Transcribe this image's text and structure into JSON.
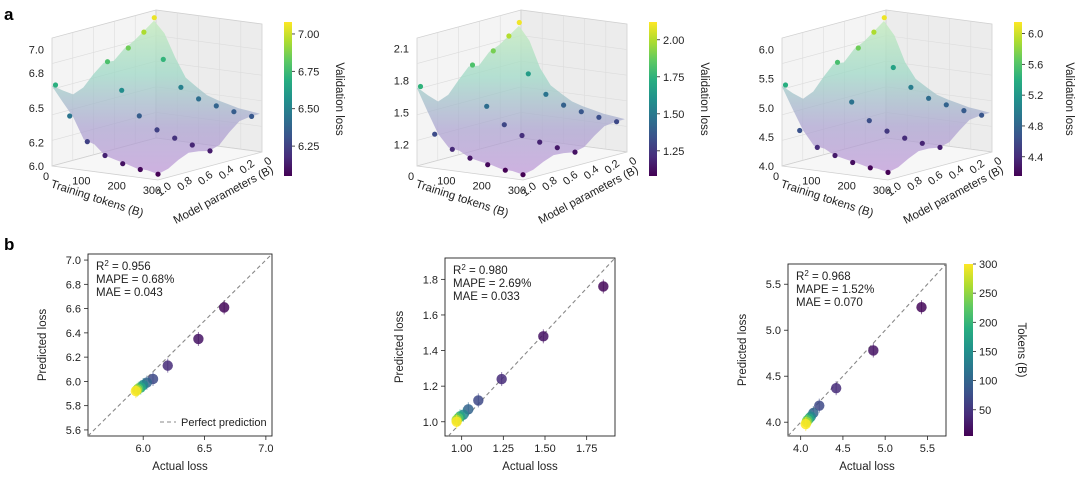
{
  "panel_labels": [
    "a",
    "b"
  ],
  "colormap": [
    "#440154",
    "#472d7b",
    "#3b528b",
    "#2c728e",
    "#21918c",
    "#28ae80",
    "#5ec962",
    "#addc30",
    "#fde725"
  ],
  "chart_data": [
    {
      "type": "surface3d",
      "panel": "a",
      "xlabel": "Training tokens (B)",
      "ylabel": "Model parameters (B)",
      "zlabel": "",
      "colorbar_label": "Validation loss",
      "x_ticks": [
        "0",
        "100",
        "200",
        "300"
      ],
      "y_ticks": [
        "1.0",
        "0.8",
        "0.6",
        "0.4",
        "0.2",
        "0"
      ],
      "z_ticks": [
        "6.0",
        "6.2",
        "6.5",
        "6.8",
        "7.0"
      ],
      "zlim": [
        6.0,
        7.1
      ],
      "colorbar_ticks": [
        "6.25",
        "6.50",
        "6.75",
        "7.00"
      ],
      "colorbar_range": [
        6.05,
        7.08
      ],
      "points": [
        {
          "tokens": 10,
          "params": 0.05,
          "loss": 7.05
        },
        {
          "tokens": 10,
          "params": 0.15,
          "loss": 6.95
        },
        {
          "tokens": 10,
          "params": 0.3,
          "loss": 6.85
        },
        {
          "tokens": 10,
          "params": 0.5,
          "loss": 6.78
        },
        {
          "tokens": 10,
          "params": 1.0,
          "loss": 6.7
        },
        {
          "tokens": 50,
          "params": 0.1,
          "loss": 6.72
        },
        {
          "tokens": 50,
          "params": 0.5,
          "loss": 6.55
        },
        {
          "tokens": 50,
          "params": 1.0,
          "loss": 6.45
        },
        {
          "tokens": 100,
          "params": 0.1,
          "loss": 6.5
        },
        {
          "tokens": 100,
          "params": 0.5,
          "loss": 6.35
        },
        {
          "tokens": 100,
          "params": 1.0,
          "loss": 6.25
        },
        {
          "tokens": 150,
          "params": 0.1,
          "loss": 6.42
        },
        {
          "tokens": 150,
          "params": 0.5,
          "loss": 6.25
        },
        {
          "tokens": 150,
          "params": 1.0,
          "loss": 6.15
        },
        {
          "tokens": 200,
          "params": 0.1,
          "loss": 6.38
        },
        {
          "tokens": 200,
          "params": 0.5,
          "loss": 6.2
        },
        {
          "tokens": 200,
          "params": 1.0,
          "loss": 6.1
        },
        {
          "tokens": 250,
          "params": 0.1,
          "loss": 6.35
        },
        {
          "tokens": 250,
          "params": 0.5,
          "loss": 6.16
        },
        {
          "tokens": 250,
          "params": 1.0,
          "loss": 6.07
        },
        {
          "tokens": 300,
          "params": 0.1,
          "loss": 6.33
        },
        {
          "tokens": 300,
          "params": 0.5,
          "loss": 6.13
        },
        {
          "tokens": 300,
          "params": 1.0,
          "loss": 6.05
        }
      ]
    },
    {
      "type": "surface3d",
      "panel": "a",
      "xlabel": "Training tokens (B)",
      "ylabel": "Model parameters (B)",
      "zlabel": "",
      "colorbar_label": "Validation loss",
      "x_ticks": [
        "0",
        "100",
        "200",
        "300"
      ],
      "y_ticks": [
        "1.0",
        "0.8",
        "0.6",
        "0.4",
        "0.2",
        "0"
      ],
      "z_ticks": [
        "1.2",
        "1.5",
        "1.8",
        "2.1"
      ],
      "zlim": [
        1.0,
        2.2
      ],
      "colorbar_ticks": [
        "1.25",
        "1.50",
        "1.75",
        "2.00"
      ],
      "colorbar_range": [
        1.08,
        2.12
      ],
      "points": [
        {
          "tokens": 10,
          "params": 0.05,
          "loss": 2.1
        },
        {
          "tokens": 10,
          "params": 0.15,
          "loss": 2.0
        },
        {
          "tokens": 10,
          "params": 0.3,
          "loss": 1.9
        },
        {
          "tokens": 10,
          "params": 0.5,
          "loss": 1.82
        },
        {
          "tokens": 10,
          "params": 1.0,
          "loss": 1.75
        },
        {
          "tokens": 50,
          "params": 0.1,
          "loss": 1.65
        },
        {
          "tokens": 50,
          "params": 0.5,
          "loss": 1.45
        },
        {
          "tokens": 50,
          "params": 1.0,
          "loss": 1.32
        },
        {
          "tokens": 100,
          "params": 0.1,
          "loss": 1.48
        },
        {
          "tokens": 100,
          "params": 0.5,
          "loss": 1.3
        },
        {
          "tokens": 100,
          "params": 1.0,
          "loss": 1.2
        },
        {
          "tokens": 150,
          "params": 0.1,
          "loss": 1.4
        },
        {
          "tokens": 150,
          "params": 0.5,
          "loss": 1.22
        },
        {
          "tokens": 150,
          "params": 1.0,
          "loss": 1.14
        },
        {
          "tokens": 200,
          "params": 0.1,
          "loss": 1.36
        },
        {
          "tokens": 200,
          "params": 0.5,
          "loss": 1.18
        },
        {
          "tokens": 200,
          "params": 1.0,
          "loss": 1.1
        },
        {
          "tokens": 250,
          "params": 0.1,
          "loss": 1.33
        },
        {
          "tokens": 250,
          "params": 0.5,
          "loss": 1.15
        },
        {
          "tokens": 250,
          "params": 1.0,
          "loss": 1.07
        },
        {
          "tokens": 300,
          "params": 0.1,
          "loss": 1.31
        },
        {
          "tokens": 300,
          "params": 0.5,
          "loss": 1.13
        },
        {
          "tokens": 300,
          "params": 1.0,
          "loss": 1.05
        }
      ]
    },
    {
      "type": "surface3d",
      "panel": "a",
      "xlabel": "Training tokens (B)",
      "ylabel": "Model parameters (B)",
      "zlabel": "",
      "colorbar_label": "Validation loss",
      "x_ticks": [
        "0",
        "100",
        "200",
        "300"
      ],
      "y_ticks": [
        "1.0",
        "0.8",
        "0.6",
        "0.4",
        "0.2",
        "0"
      ],
      "z_ticks": [
        "4.0",
        "4.5",
        "5.0",
        "5.5",
        "6.0"
      ],
      "zlim": [
        4.0,
        6.2
      ],
      "colorbar_ticks": [
        "4.4",
        "4.8",
        "5.2",
        "5.6",
        "6.0"
      ],
      "colorbar_range": [
        4.15,
        6.15
      ],
      "points": [
        {
          "tokens": 10,
          "params": 0.05,
          "loss": 6.1
        },
        {
          "tokens": 10,
          "params": 0.15,
          "loss": 5.9
        },
        {
          "tokens": 10,
          "params": 0.3,
          "loss": 5.7
        },
        {
          "tokens": 10,
          "params": 0.5,
          "loss": 5.55
        },
        {
          "tokens": 10,
          "params": 1.0,
          "loss": 5.4
        },
        {
          "tokens": 50,
          "params": 0.1,
          "loss": 5.3
        },
        {
          "tokens": 50,
          "params": 0.5,
          "loss": 4.9
        },
        {
          "tokens": 50,
          "params": 1.0,
          "loss": 4.65
        },
        {
          "tokens": 100,
          "params": 0.1,
          "loss": 5.0
        },
        {
          "tokens": 100,
          "params": 0.5,
          "loss": 4.62
        },
        {
          "tokens": 100,
          "params": 1.0,
          "loss": 4.4
        },
        {
          "tokens": 150,
          "params": 0.1,
          "loss": 4.85
        },
        {
          "tokens": 150,
          "params": 0.5,
          "loss": 4.48
        },
        {
          "tokens": 150,
          "params": 1.0,
          "loss": 4.3
        },
        {
          "tokens": 200,
          "params": 0.1,
          "loss": 4.78
        },
        {
          "tokens": 200,
          "params": 0.5,
          "loss": 4.4
        },
        {
          "tokens": 200,
          "params": 1.0,
          "loss": 4.22
        },
        {
          "tokens": 250,
          "params": 0.1,
          "loss": 4.72
        },
        {
          "tokens": 250,
          "params": 0.5,
          "loss": 4.35
        },
        {
          "tokens": 250,
          "params": 1.0,
          "loss": 4.17
        },
        {
          "tokens": 300,
          "params": 0.1,
          "loss": 4.68
        },
        {
          "tokens": 300,
          "params": 0.5,
          "loss": 4.32
        },
        {
          "tokens": 300,
          "params": 1.0,
          "loss": 4.13
        }
      ]
    },
    {
      "type": "scatter",
      "panel": "b",
      "xlabel": "Actual loss",
      "ylabel": "Predicted loss",
      "xlim": [
        5.55,
        7.05
      ],
      "ylim": [
        5.55,
        7.05
      ],
      "x_ticks": [
        6.0,
        6.5,
        7.0
      ],
      "y_ticks": [
        5.6,
        5.8,
        6.0,
        6.2,
        6.4,
        6.6,
        6.8,
        7.0
      ],
      "x_tick_labels": [
        "6.0",
        "6.5",
        "7.0"
      ],
      "y_tick_labels": [
        "5.6",
        "5.8",
        "6.0",
        "6.2",
        "6.4",
        "6.6",
        "6.8",
        "7.0"
      ],
      "stats": [
        "= 0.956",
        "MAPE = 0.68%",
        "MAE = 0.043"
      ],
      "legend_label": "Perfect prediction",
      "legend_position": "bottom-right",
      "diagonal": true,
      "color_key": "tokens",
      "points": [
        {
          "actual": 6.66,
          "predicted": 6.61,
          "tokens": 10
        },
        {
          "actual": 6.45,
          "predicted": 6.35,
          "tokens": 20
        },
        {
          "actual": 6.2,
          "predicted": 6.13,
          "tokens": 40
        },
        {
          "actual": 6.08,
          "predicted": 6.02,
          "tokens": 70
        },
        {
          "actual": 6.03,
          "predicted": 5.99,
          "tokens": 100
        },
        {
          "actual": 6.0,
          "predicted": 5.97,
          "tokens": 140
        },
        {
          "actual": 5.98,
          "predicted": 5.95,
          "tokens": 180
        },
        {
          "actual": 5.96,
          "predicted": 5.94,
          "tokens": 220
        },
        {
          "actual": 5.95,
          "predicted": 5.93,
          "tokens": 260
        },
        {
          "actual": 5.94,
          "predicted": 5.92,
          "tokens": 300
        }
      ]
    },
    {
      "type": "scatter",
      "panel": "b",
      "xlabel": "Actual loss",
      "ylabel": "Predicted loss",
      "xlim": [
        0.9,
        1.92
      ],
      "ylim": [
        0.92,
        1.92
      ],
      "x_ticks": [
        1.0,
        1.25,
        1.5,
        1.75
      ],
      "y_ticks": [
        1.0,
        1.2,
        1.4,
        1.6,
        1.8
      ],
      "x_tick_labels": [
        "1.00",
        "1.25",
        "1.50",
        "1.75"
      ],
      "y_tick_labels": [
        "1.0",
        "1.2",
        "1.4",
        "1.6",
        "1.8"
      ],
      "stats": [
        "= 0.980",
        "MAPE = 2.69%",
        "MAE = 0.033"
      ],
      "diagonal": true,
      "color_key": "tokens",
      "points": [
        {
          "actual": 1.85,
          "predicted": 1.76,
          "tokens": 10
        },
        {
          "actual": 1.49,
          "predicted": 1.48,
          "tokens": 20
        },
        {
          "actual": 1.24,
          "predicted": 1.24,
          "tokens": 40
        },
        {
          "actual": 1.1,
          "predicted": 1.12,
          "tokens": 70
        },
        {
          "actual": 1.04,
          "predicted": 1.07,
          "tokens": 100
        },
        {
          "actual": 1.01,
          "predicted": 1.04,
          "tokens": 140
        },
        {
          "actual": 0.99,
          "predicted": 1.03,
          "tokens": 180
        },
        {
          "actual": 0.98,
          "predicted": 1.02,
          "tokens": 220
        },
        {
          "actual": 0.97,
          "predicted": 1.01,
          "tokens": 260
        },
        {
          "actual": 0.97,
          "predicted": 1.0,
          "tokens": 300
        }
      ]
    },
    {
      "type": "scatter",
      "panel": "b",
      "xlabel": "Actual loss",
      "ylabel": "Predicted loss",
      "xlim": [
        3.85,
        5.72
      ],
      "ylim": [
        3.85,
        5.72
      ],
      "x_ticks": [
        4.0,
        4.5,
        5.0,
        5.5
      ],
      "y_ticks": [
        4.0,
        4.5,
        5.0,
        5.5
      ],
      "x_tick_labels": [
        "4.0",
        "4.5",
        "5.0",
        "5.5"
      ],
      "y_tick_labels": [
        "4.0",
        "4.5",
        "5.0",
        "5.5"
      ],
      "stats": [
        "= 0.968",
        "MAPE = 1.52%",
        "MAE = 0.070"
      ],
      "diagonal": true,
      "color_key": "tokens",
      "colorbar_label": "Tokens (B)",
      "colorbar_ticks": [
        50,
        100,
        150,
        200,
        250,
        300
      ],
      "colorbar_range": [
        5,
        300
      ],
      "points": [
        {
          "actual": 5.43,
          "predicted": 5.25,
          "tokens": 10
        },
        {
          "actual": 4.86,
          "predicted": 4.78,
          "tokens": 20
        },
        {
          "actual": 4.42,
          "predicted": 4.37,
          "tokens": 40
        },
        {
          "actual": 4.22,
          "predicted": 4.18,
          "tokens": 70
        },
        {
          "actual": 4.15,
          "predicted": 4.1,
          "tokens": 100
        },
        {
          "actual": 4.12,
          "predicted": 4.06,
          "tokens": 140
        },
        {
          "actual": 4.1,
          "predicted": 4.04,
          "tokens": 180
        },
        {
          "actual": 4.08,
          "predicted": 4.02,
          "tokens": 220
        },
        {
          "actual": 4.07,
          "predicted": 4.0,
          "tokens": 260
        },
        {
          "actual": 4.06,
          "predicted": 3.98,
          "tokens": 300
        }
      ]
    }
  ]
}
